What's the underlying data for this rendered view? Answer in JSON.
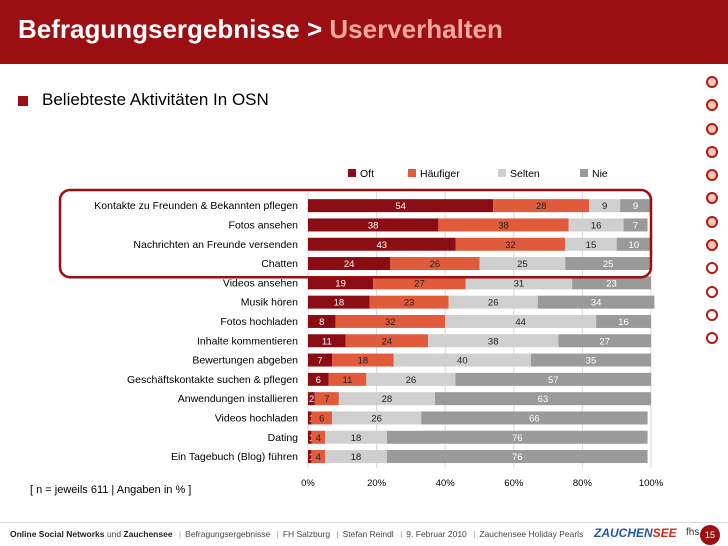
{
  "header": {
    "title_main": "Befragungsergebnisse",
    "separator": ">",
    "title_highlight": "Userverhalten"
  },
  "subtitle": "Beliebteste Aktivitäten In OSN",
  "note": "[ n = jeweils 611  |  Angaben in % ]",
  "footer": {
    "left_bold": "Online Social Networks",
    "left_mid": "und",
    "left_bold2": "Zauchensee",
    "items": [
      "Befragungsergebnisse",
      "FH Salzburg",
      "Stefan Reindl",
      "9. Februar 2010",
      "Zauchensee Holiday Pearls"
    ],
    "logo_a": "ZAUCHEN",
    "logo_b": "SEE",
    "fhs": "fhs",
    "page": "15"
  },
  "colors": {
    "oft": "#8b0d14",
    "haeufiger": "#e05a3c",
    "selten": "#cfcfcf",
    "nie": "#9a9a9a",
    "highlight": "#9b0f12"
  },
  "chart_data": {
    "type": "bar",
    "orientation": "horizontal",
    "stacked": true,
    "percent": true,
    "legend_position": "top",
    "categories": [
      "Kontakte zu Freunden & Bekannten pflegen",
      "Fotos ansehen",
      "Nachrichten an Freunde versenden",
      "Chatten",
      "Videos ansehen",
      "Musik hören",
      "Fotos hochladen",
      "Inhalte kommentieren",
      "Bewertungen abgeben",
      "Geschäftskontakte suchen & pflegen",
      "Anwendungen installieren",
      "Videos hochladen",
      "Dating",
      "Ein Tagebuch (Blog) führen"
    ],
    "series": [
      {
        "name": "Oft",
        "values": [
          54,
          38,
          43,
          24,
          19,
          18,
          8,
          11,
          7,
          6,
          2,
          1,
          1,
          1
        ]
      },
      {
        "name": "Häufiger",
        "values": [
          28,
          38,
          32,
          26,
          27,
          23,
          32,
          24,
          18,
          11,
          7,
          6,
          4,
          4
        ]
      },
      {
        "name": "Selten",
        "values": [
          9,
          16,
          15,
          25,
          31,
          26,
          44,
          38,
          40,
          26,
          28,
          26,
          18,
          18
        ]
      },
      {
        "name": "Nie",
        "values": [
          9,
          7,
          10,
          25,
          23,
          34,
          16,
          27,
          35,
          57,
          63,
          66,
          76,
          76
        ]
      }
    ],
    "xticks": [
      "0%",
      "20%",
      "40%",
      "60%",
      "80%",
      "100%"
    ],
    "xlim": [
      0,
      100
    ],
    "highlighted_categories": 4
  }
}
